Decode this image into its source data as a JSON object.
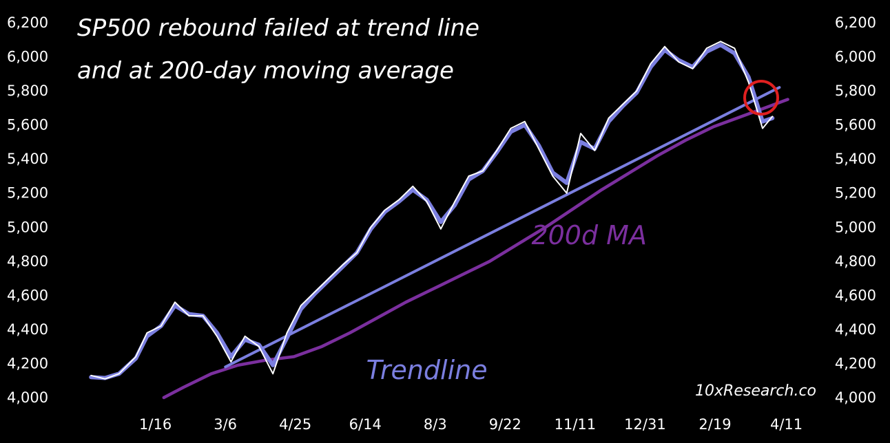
{
  "chart_data": {
    "type": "line",
    "title_lines": [
      "SP500 rebound failed at trend line",
      "and at 200-day moving average"
    ],
    "xlabel": "",
    "ylabel": "",
    "ylim": [
      4000,
      6200
    ],
    "yticks": [
      4000,
      4200,
      4400,
      4600,
      4800,
      5000,
      5200,
      5400,
      5600,
      5800,
      6000,
      6200
    ],
    "ytick_labels": [
      "4,000",
      "4,200",
      "4,400",
      "4,600",
      "4,800",
      "5,000",
      "5,200",
      "5,400",
      "5,600",
      "5,800",
      "6,000",
      "6,200"
    ],
    "xlim": [
      "2023-11-25",
      "2025-04-25"
    ],
    "xtick_dates": [
      "2024-01-16",
      "2024-03-06",
      "2024-04-25",
      "2024-06-14",
      "2024-08-03",
      "2024-09-22",
      "2024-11-11",
      "2024-12-31",
      "2025-02-19",
      "2025-04-11"
    ],
    "xtick_labels": [
      "1/16",
      "3/6",
      "4/25",
      "6/14",
      "8/3",
      "9/22",
      "11/11",
      "12/31",
      "2/19",
      "4/11"
    ],
    "grid": false,
    "series": [
      {
        "role": "price",
        "color": "#ffffff",
        "dates": [
          "2023-12-01",
          "2023-12-11",
          "2023-12-21",
          "2024-01-02",
          "2024-01-10",
          "2024-01-20",
          "2024-01-30",
          "2024-02-09",
          "2024-02-19",
          "2024-02-29",
          "2024-03-10",
          "2024-03-20",
          "2024-03-30",
          "2024-04-09",
          "2024-04-19",
          "2024-04-29",
          "2024-05-09",
          "2024-05-19",
          "2024-05-29",
          "2024-06-08",
          "2024-06-18",
          "2024-06-28",
          "2024-07-08",
          "2024-07-18",
          "2024-07-28",
          "2024-08-07",
          "2024-08-17",
          "2024-08-27",
          "2024-09-06",
          "2024-09-16",
          "2024-09-26",
          "2024-10-06",
          "2024-10-16",
          "2024-10-26",
          "2024-11-05",
          "2024-11-15",
          "2024-11-25",
          "2024-12-05",
          "2024-12-15",
          "2024-12-25",
          "2025-01-04",
          "2025-01-14",
          "2025-01-24",
          "2025-02-03",
          "2025-02-13",
          "2025-02-23",
          "2025-03-05",
          "2025-03-15",
          "2025-03-25",
          "2025-04-01"
        ],
        "values": [
          4130,
          4110,
          4140,
          4240,
          4380,
          4420,
          4560,
          4480,
          4480,
          4360,
          4210,
          4360,
          4300,
          4140,
          4380,
          4540,
          4620,
          4700,
          4780,
          4850,
          5000,
          5100,
          5160,
          5240,
          5150,
          4990,
          5150,
          5300,
          5330,
          5450,
          5580,
          5620,
          5460,
          5300,
          5200,
          5550,
          5450,
          5640,
          5720,
          5800,
          5960,
          6060,
          5970,
          5930,
          6050,
          6090,
          6050,
          5850,
          5580,
          5650
        ]
      },
      {
        "role": "smoothed-price",
        "color": "#7b7fe0",
        "dates": [
          "2023-12-01",
          "2023-12-11",
          "2023-12-21",
          "2024-01-02",
          "2024-01-10",
          "2024-01-20",
          "2024-01-30",
          "2024-02-09",
          "2024-02-19",
          "2024-02-29",
          "2024-03-10",
          "2024-03-20",
          "2024-03-30",
          "2024-04-09",
          "2024-04-19",
          "2024-04-29",
          "2024-05-09",
          "2024-05-19",
          "2024-05-29",
          "2024-06-08",
          "2024-06-18",
          "2024-06-28",
          "2024-07-08",
          "2024-07-18",
          "2024-07-28",
          "2024-08-07",
          "2024-08-17",
          "2024-08-27",
          "2024-09-06",
          "2024-09-16",
          "2024-09-26",
          "2024-10-06",
          "2024-10-16",
          "2024-10-26",
          "2024-11-05",
          "2024-11-15",
          "2024-11-25",
          "2024-12-05",
          "2024-12-15",
          "2024-12-25",
          "2025-01-04",
          "2025-01-14",
          "2025-01-24",
          "2025-02-03",
          "2025-02-13",
          "2025-02-23",
          "2025-03-05",
          "2025-03-15",
          "2025-03-25",
          "2025-04-01"
        ],
        "values": [
          4120,
          4115,
          4140,
          4230,
          4360,
          4420,
          4540,
          4490,
          4480,
          4380,
          4240,
          4340,
          4310,
          4190,
          4350,
          4520,
          4610,
          4690,
          4770,
          4850,
          4990,
          5090,
          5150,
          5220,
          5160,
          5030,
          5130,
          5280,
          5330,
          5440,
          5560,
          5600,
          5480,
          5320,
          5260,
          5500,
          5460,
          5620,
          5710,
          5790,
          5940,
          6040,
          5980,
          5940,
          6030,
          6070,
          6020,
          5880,
          5620,
          5640
        ]
      },
      {
        "name": "200d MA",
        "role": "moving-average",
        "color": "#7b2f9e",
        "dates": [
          "2024-01-22",
          "2024-02-05",
          "2024-02-25",
          "2024-03-15",
          "2024-04-04",
          "2024-04-24",
          "2024-05-14",
          "2024-06-03",
          "2024-06-23",
          "2024-07-13",
          "2024-08-02",
          "2024-08-22",
          "2024-09-11",
          "2024-10-01",
          "2024-10-21",
          "2024-11-10",
          "2024-11-30",
          "2024-12-20",
          "2025-01-09",
          "2025-01-29",
          "2025-02-18",
          "2025-03-10",
          "2025-03-30",
          "2025-04-12"
        ],
        "values": [
          4000,
          4060,
          4140,
          4190,
          4220,
          4240,
          4300,
          4380,
          4470,
          4560,
          4640,
          4720,
          4800,
          4900,
          5000,
          5110,
          5220,
          5320,
          5420,
          5510,
          5590,
          5650,
          5710,
          5750
        ]
      },
      {
        "name": "Trendline",
        "role": "trendline",
        "color": "#7b7fe0",
        "dates": [
          "2024-03-06",
          "2025-04-06"
        ],
        "values": [
          4180,
          5820
        ]
      }
    ],
    "annotations": [
      {
        "text": "Trendline",
        "color": "#7b7fe0",
        "date": "2024-07-28",
        "value": 4110
      },
      {
        "text": "200d MA",
        "color": "#7b2f9e",
        "date": "2024-11-21",
        "value": 4900
      }
    ],
    "highlight": {
      "shape": "circle",
      "color": "#e02020",
      "date": "2025-03-24",
      "value": 5760
    },
    "watermark": "10xResearch.co"
  }
}
